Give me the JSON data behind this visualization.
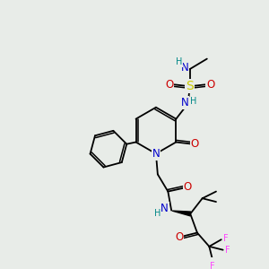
{
  "bg_color": "#e8ece8",
  "atom_colors": {
    "N": "#0000cc",
    "O": "#cc0000",
    "S": "#cccc00",
    "F": "#ff44ff",
    "C": "#000000",
    "H": "#008888"
  },
  "font_size_atom": 8.5,
  "font_size_small": 7.0,
  "font_size_methyl": 8.0
}
